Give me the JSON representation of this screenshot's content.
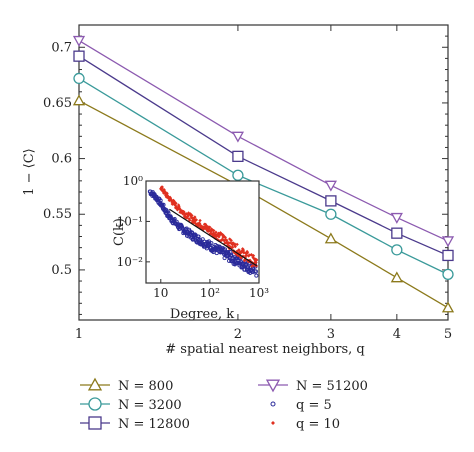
{
  "chart_data": [
    {
      "type": "line",
      "xlabel": "# spatial nearest neighbors, q",
      "ylabel": "1 − ⟨C⟩",
      "xscale": "log",
      "xlim": [
        1,
        5
      ],
      "ylim": [
        0.455,
        0.72
      ],
      "x": [
        1,
        2,
        3,
        4,
        5
      ],
      "xticks": [
        "1",
        "2",
        "3",
        "4",
        "5"
      ],
      "yticks": [
        "0.5",
        "0.55",
        "0.6",
        "0.65",
        "0.7"
      ],
      "grid": false,
      "legend_position": "below",
      "series": [
        {
          "name": "N = 800",
          "marker": "triangle-up",
          "color": "#8c7a1c",
          "values": [
            0.652,
            0.576,
            0.528,
            0.493,
            0.466
          ]
        },
        {
          "name": "N = 3200",
          "marker": "circle",
          "color": "#3a9a9a",
          "values": [
            0.672,
            0.585,
            0.55,
            0.518,
            0.496
          ]
        },
        {
          "name": "N = 12800",
          "marker": "square",
          "color": "#4b3a8c",
          "values": [
            0.692,
            0.602,
            0.562,
            0.533,
            0.513
          ]
        },
        {
          "name": "N = 51200",
          "marker": "triangle-down",
          "color": "#8c5ab0",
          "values": [
            0.706,
            0.62,
            0.576,
            0.547,
            0.526
          ]
        }
      ]
    },
    {
      "type": "scatter",
      "xlabel": "Degree, k",
      "ylabel": "C(k)",
      "xscale": "log",
      "yscale": "log",
      "xlim": [
        5,
        1000
      ],
      "ylim": [
        0.003,
        1
      ],
      "xticks": [
        "10",
        "10²",
        "10³"
      ],
      "yticks": [
        "10⁻²",
        "10⁻¹",
        "10⁰"
      ],
      "grid": false,
      "series": [
        {
          "name": "q = 5",
          "marker": "open-circle",
          "color": "#2a2a9a",
          "anchors": [
            [
              6,
              0.55
            ],
            [
              8,
              0.4
            ],
            [
              10,
              0.28
            ],
            [
              15,
              0.13
            ],
            [
              25,
              0.07
            ],
            [
              50,
              0.04
            ],
            [
              100,
              0.025
            ],
            [
              300,
              0.012
            ],
            [
              900,
              0.006
            ]
          ]
        },
        {
          "name": "q = 10",
          "marker": "diamond",
          "color": "#e03020",
          "anchors": [
            [
              10,
              0.7
            ],
            [
              13,
              0.45
            ],
            [
              20,
              0.25
            ],
            [
              30,
              0.16
            ],
            [
              60,
              0.09
            ],
            [
              100,
              0.06
            ],
            [
              200,
              0.035
            ],
            [
              400,
              0.018
            ],
            [
              900,
              0.009
            ]
          ]
        }
      ]
    }
  ]
}
